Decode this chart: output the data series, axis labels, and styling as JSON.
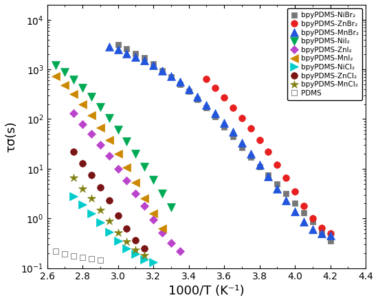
{
  "xlabel": "1000/T (K⁻¹)",
  "ylabel": "τσ(s)",
  "xlim": [
    2.6,
    4.4
  ],
  "ylim": [
    0.1,
    20000
  ],
  "series": [
    {
      "label": "bpyPDMS-NiBr₂",
      "color": "#777777",
      "marker": "s",
      "markersize": 6,
      "x": [
        3.0,
        3.05,
        3.1,
        3.15,
        3.2,
        3.25,
        3.3,
        3.35,
        3.4,
        3.45,
        3.5,
        3.55,
        3.6,
        3.65,
        3.7,
        3.75,
        3.8,
        3.85,
        3.9,
        3.95,
        4.0,
        4.05,
        4.1,
        4.15,
        4.2
      ],
      "y": [
        3200,
        2600,
        2100,
        1700,
        1300,
        950,
        700,
        500,
        360,
        250,
        170,
        110,
        70,
        45,
        27,
        17,
        11,
        7.5,
        5.0,
        3.2,
        2.0,
        1.3,
        0.85,
        0.55,
        0.35
      ]
    },
    {
      "label": "bpyPDMS-ZnBr₂",
      "color": "#e82020",
      "marker": "o",
      "markersize": 7,
      "x": [
        3.5,
        3.55,
        3.6,
        3.65,
        3.7,
        3.75,
        3.8,
        3.85,
        3.9,
        3.95,
        4.0,
        4.05,
        4.1,
        4.15,
        4.2
      ],
      "y": [
        650,
        430,
        270,
        170,
        105,
        65,
        38,
        22,
        12,
        6.5,
        3.5,
        1.8,
        1.0,
        0.65,
        0.5
      ]
    },
    {
      "label": "bpyPDMS-MnBr₂",
      "color": "#2255dd",
      "marker": "^",
      "markersize": 8,
      "x": [
        2.95,
        3.0,
        3.05,
        3.1,
        3.15,
        3.2,
        3.25,
        3.3,
        3.35,
        3.4,
        3.45,
        3.5,
        3.55,
        3.6,
        3.65,
        3.7,
        3.75,
        3.8,
        3.85,
        3.9,
        3.95,
        4.0,
        4.05,
        4.1,
        4.15,
        4.2
      ],
      "y": [
        2900,
        2500,
        2100,
        1800,
        1500,
        1200,
        950,
        740,
        560,
        400,
        285,
        195,
        130,
        85,
        55,
        33,
        20,
        12,
        7,
        4.0,
        2.3,
        1.4,
        0.85,
        0.6,
        0.5,
        0.45
      ]
    },
    {
      "label": "bpyPDMS-NiI₂",
      "color": "#00aa55",
      "marker": "v",
      "markersize": 8,
      "x": [
        2.65,
        2.7,
        2.75,
        2.8,
        2.85,
        2.9,
        2.95,
        3.0,
        3.05,
        3.1,
        3.15,
        3.2,
        3.25,
        3.3
      ],
      "y": [
        1200,
        870,
        620,
        430,
        280,
        175,
        105,
        62,
        36,
        20,
        11,
        6.0,
        3.2,
        1.7
      ]
    },
    {
      "label": "bpyPDMS-ZnI₂",
      "color": "#bb44cc",
      "marker": "D",
      "markersize": 6,
      "x": [
        2.75,
        2.8,
        2.85,
        2.9,
        2.95,
        3.0,
        3.05,
        3.1,
        3.15,
        3.2,
        3.25,
        3.3,
        3.35
      ],
      "y": [
        130,
        80,
        50,
        30,
        18,
        10,
        5.8,
        3.2,
        1.8,
        0.95,
        0.52,
        0.32,
        0.22
      ]
    },
    {
      "label": "bpyPDMS-MnI₂",
      "color": "#cc8800",
      "marker": "<",
      "markersize": 8,
      "x": [
        2.65,
        2.7,
        2.75,
        2.8,
        2.85,
        2.9,
        2.95,
        3.0,
        3.05,
        3.1,
        3.15,
        3.2,
        3.25
      ],
      "y": [
        720,
        490,
        320,
        200,
        120,
        68,
        38,
        20,
        10.5,
        5.2,
        2.5,
        1.25,
        0.62
      ]
    },
    {
      "label": "bpyPDMS-NiCl₂",
      "color": "#00cccc",
      "marker": ">",
      "markersize": 8,
      "x": [
        2.75,
        2.8,
        2.85,
        2.9,
        2.95,
        3.0,
        3.05,
        3.1,
        3.15,
        3.2
      ],
      "y": [
        2.8,
        1.9,
        1.25,
        0.82,
        0.54,
        0.35,
        0.25,
        0.19,
        0.15,
        0.13
      ]
    },
    {
      "label": "bpyPDMS-ZnCl₂",
      "color": "#7a1515",
      "marker": "o",
      "markersize": 7,
      "x": [
        2.75,
        2.8,
        2.85,
        2.9,
        2.95,
        3.0,
        3.05,
        3.1,
        3.15
      ],
      "y": [
        22,
        13,
        7.5,
        4.2,
        2.3,
        1.15,
        0.62,
        0.37,
        0.25
      ]
    },
    {
      "label": "bpyPDMS-MnCl₂",
      "color": "#808010",
      "marker": "*",
      "markersize": 9,
      "x": [
        2.75,
        2.8,
        2.85,
        2.9,
        2.95,
        3.0,
        3.05,
        3.1,
        3.15
      ],
      "y": [
        6.5,
        4.0,
        2.5,
        1.5,
        0.88,
        0.52,
        0.34,
        0.23,
        0.18
      ]
    },
    {
      "label": "PDMS",
      "color": "#555555",
      "marker": "s",
      "markersize": 6,
      "markerfacecolor": "none",
      "x": [
        2.65,
        2.7,
        2.75,
        2.8,
        2.85,
        2.9
      ],
      "y": [
        0.22,
        0.195,
        0.175,
        0.165,
        0.155,
        0.145
      ]
    }
  ],
  "legend_fontsize": 7.5,
  "tick_fontsize": 10,
  "axis_label_fontsize": 13
}
